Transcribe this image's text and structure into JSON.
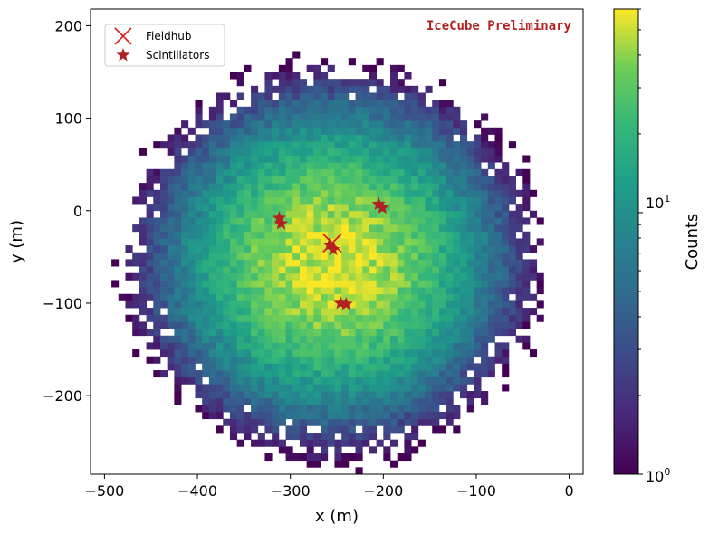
{
  "chart_data": {
    "type": "heatmap",
    "title": "",
    "xlabel": "x (m)",
    "ylabel": "y (m)",
    "xlim": [
      -515,
      15
    ],
    "ylim": [
      -285,
      218
    ],
    "x_ticks": [
      -500,
      -400,
      -300,
      -200,
      -100,
      0
    ],
    "x_tick_labels": [
      "−500",
      "−400",
      "−300",
      "−200",
      "−100",
      "0"
    ],
    "y_ticks": [
      -200,
      -100,
      0,
      100,
      200
    ],
    "y_tick_labels": [
      "−200",
      "−100",
      "0",
      "100",
      "200"
    ],
    "grid": false,
    "colormap": "viridis",
    "colorbar": {
      "label": "Counts",
      "scale": "log",
      "range": [
        1,
        60
      ],
      "ticks": [
        {
          "value": 1,
          "base": "10",
          "exp": "0"
        },
        {
          "value": 10,
          "base": "10",
          "exp": "1"
        }
      ]
    },
    "heatmap": {
      "description_center": [
        -255,
        -55
      ],
      "peak_counts": 55,
      "radius": 225,
      "bin_size": 7.5
    },
    "annotation": {
      "text": "IceCube Preliminary",
      "color": "#b22222"
    },
    "legend": {
      "placement": "top-left",
      "entries": [
        {
          "label": "Fieldhub",
          "marker": "x",
          "color": "#e31a1c"
        },
        {
          "label": "Scintillators",
          "marker": "star",
          "color": "#b22222"
        }
      ]
    },
    "series": [
      {
        "name": "Fieldhub",
        "marker": "x",
        "points": [
          [
            -255,
            -35
          ]
        ]
      },
      {
        "name": "Scintillators",
        "marker": "star",
        "points": [
          [
            -312,
            -8
          ],
          [
            -310,
            -14
          ],
          [
            -258,
            -37
          ],
          [
            -254,
            -42
          ],
          [
            -205,
            7
          ],
          [
            -201,
            3
          ],
          [
            -246,
            -100
          ],
          [
            -240,
            -101
          ]
        ]
      }
    ]
  }
}
